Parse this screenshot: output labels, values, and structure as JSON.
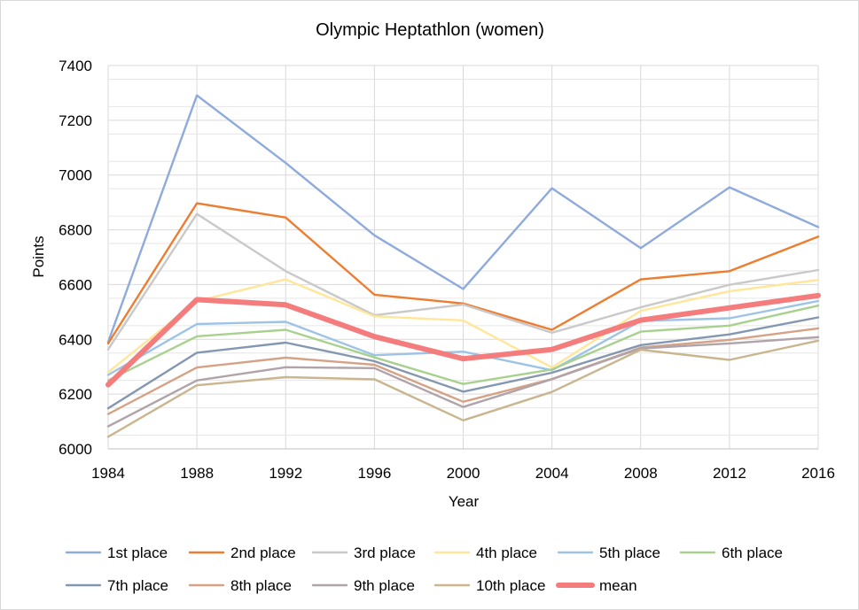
{
  "chart_data": {
    "type": "line",
    "title": "Olympic Heptathlon (women)",
    "xlabel": "Year",
    "ylabel": "Points",
    "x": [
      "1984",
      "1988",
      "1992",
      "1996",
      "2000",
      "2004",
      "2008",
      "2012",
      "2016"
    ],
    "ylim": [
      6000,
      7400
    ],
    "yticks": [
      "6000",
      "6200",
      "6400",
      "6600",
      "6800",
      "7000",
      "7200",
      "7400"
    ],
    "grid": true,
    "legend_position": "bottom",
    "series": [
      {
        "name": "1st place",
        "color": "#8faadc",
        "values": [
          6390,
          7291,
          7044,
          6780,
          6584,
          6952,
          6733,
          6955,
          6810
        ]
      },
      {
        "name": "2nd place",
        "color": "#ed7d31",
        "values": [
          6385,
          6897,
          6845,
          6563,
          6531,
          6435,
          6619,
          6649,
          6775
        ]
      },
      {
        "name": "3rd place",
        "color": "#c9c9c9",
        "values": [
          6363,
          6858,
          6649,
          6488,
          6527,
          6424,
          6517,
          6599,
          6653
        ]
      },
      {
        "name": "4th place",
        "color": "#ffe699",
        "values": [
          6280,
          6540,
          6619,
          6484,
          6469,
          6297,
          6504,
          6576,
          6617
        ]
      },
      {
        "name": "5th place",
        "color": "#9dc3e6",
        "values": [
          6270,
          6456,
          6464,
          6342,
          6355,
          6287,
          6467,
          6477,
          6540
        ]
      },
      {
        "name": "6th place",
        "color": "#a9d18e",
        "values": [
          6250,
          6411,
          6435,
          6334,
          6237,
          6290,
          6428,
          6450,
          6523
        ]
      },
      {
        "name": "7th place",
        "color": "#8497b0",
        "values": [
          6148,
          6351,
          6388,
          6320,
          6209,
          6278,
          6379,
          6418,
          6480
        ]
      },
      {
        "name": "8th place",
        "color": "#d5a286",
        "values": [
          6127,
          6297,
          6333,
          6307,
          6172,
          6255,
          6370,
          6398,
          6440
        ]
      },
      {
        "name": "9th place",
        "color": "#b0a3a9",
        "values": [
          6082,
          6250,
          6298,
          6295,
          6153,
          6254,
          6367,
          6385,
          6408
        ]
      },
      {
        "name": "10th place",
        "color": "#c9b58e",
        "values": [
          6044,
          6232,
          6262,
          6254,
          6104,
          6208,
          6362,
          6325,
          6395
        ]
      },
      {
        "name": "mean",
        "color": "#f47c7c",
        "thick": true,
        "values": [
          6234,
          6545,
          6526,
          6410,
          6329,
          6363,
          6470,
          6515,
          6560
        ]
      }
    ]
  }
}
